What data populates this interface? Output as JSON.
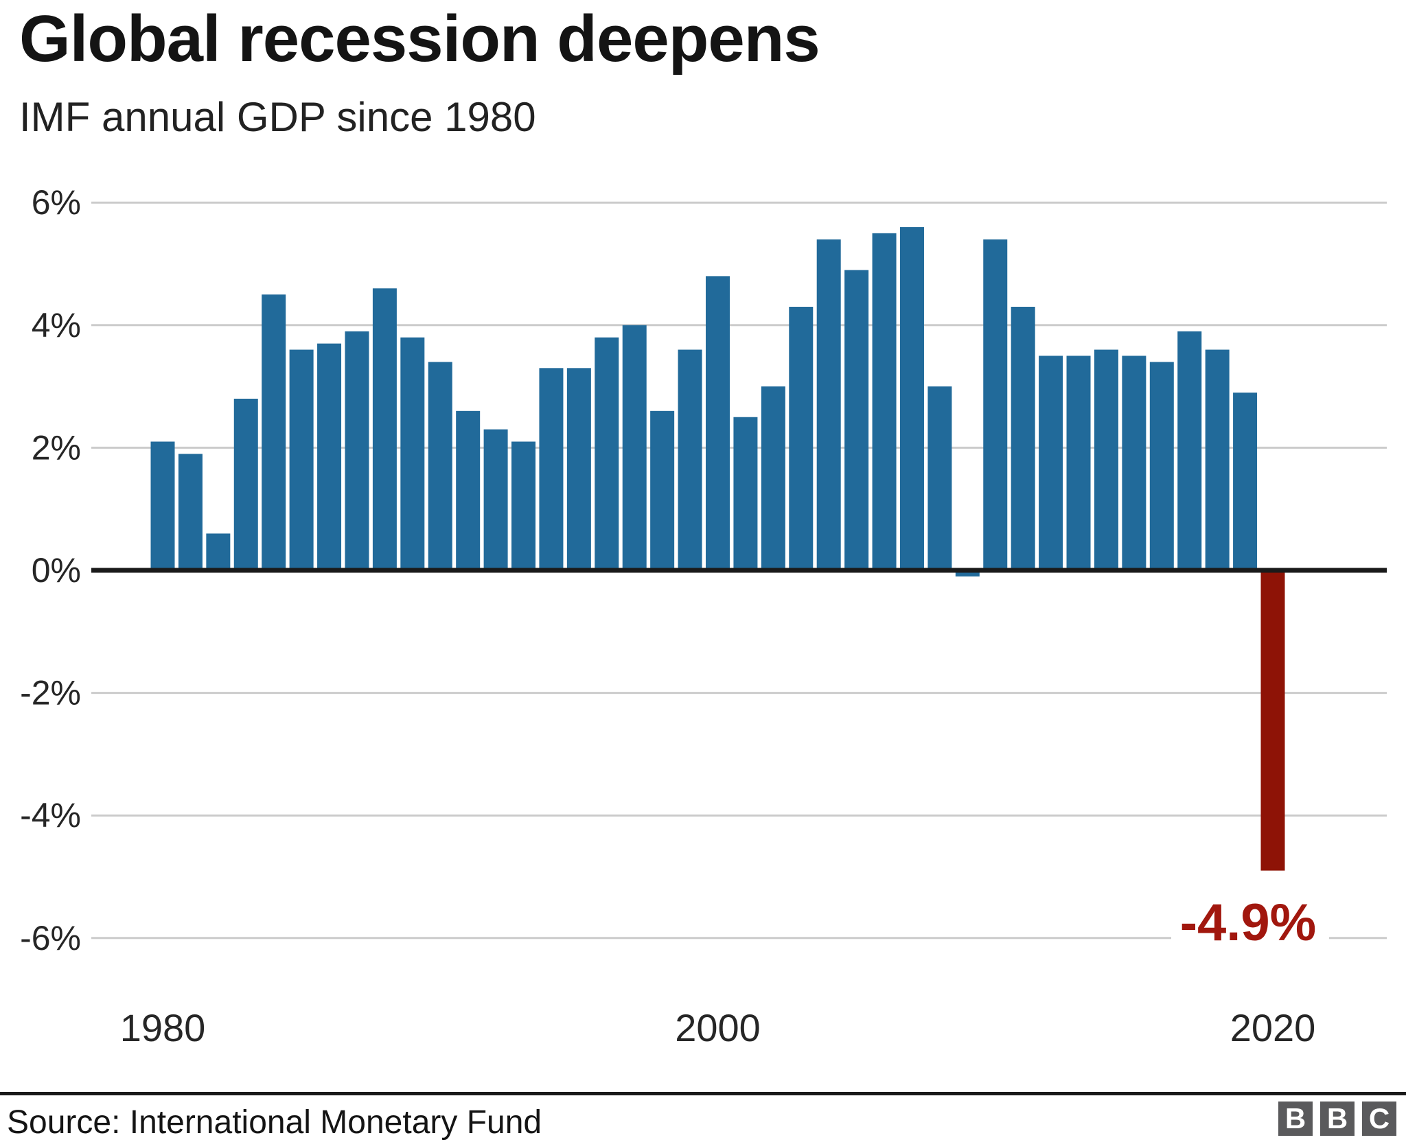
{
  "header": {
    "title": "Global recession deepens",
    "subtitle": "IMF annual GDP since 1980"
  },
  "chart_data": {
    "type": "bar",
    "title": "Global recession deepens",
    "subtitle": "IMF annual GDP since 1980",
    "unit": "%",
    "categories": [
      1980,
      1981,
      1982,
      1983,
      1984,
      1985,
      1986,
      1987,
      1988,
      1989,
      1990,
      1991,
      1992,
      1993,
      1994,
      1995,
      1996,
      1997,
      1998,
      1999,
      2000,
      2001,
      2002,
      2003,
      2004,
      2005,
      2006,
      2007,
      2008,
      2009,
      2010,
      2011,
      2012,
      2013,
      2014,
      2015,
      2016,
      2017,
      2018,
      2019,
      2020
    ],
    "values": [
      2.1,
      1.9,
      0.6,
      2.8,
      4.5,
      3.6,
      3.7,
      3.9,
      4.6,
      3.8,
      3.4,
      2.6,
      2.3,
      2.1,
      3.3,
      3.3,
      3.8,
      4.0,
      2.6,
      3.6,
      4.8,
      2.5,
      3.0,
      4.3,
      5.4,
      4.9,
      5.5,
      5.6,
      3.0,
      -0.1,
      5.4,
      4.3,
      3.5,
      3.5,
      3.6,
      3.5,
      3.4,
      3.9,
      3.6,
      2.9,
      -4.9
    ],
    "ylim": [
      -6,
      6
    ],
    "ytick_values": [
      6,
      4,
      2,
      0,
      -2,
      -4,
      -6
    ],
    "ytick_labels": [
      "6%",
      "4%",
      "2%",
      "0%",
      "-2%",
      "-4%",
      "-6%"
    ],
    "xtick_years": [
      1980,
      2000,
      2020
    ],
    "xtick_labels": [
      "1980",
      "2000",
      "2020"
    ],
    "grid": true,
    "legend": "none",
    "bar_color": "#216a9a",
    "highlight_year": 2020,
    "highlight_color": "#8e1306",
    "gridline_color": "#cccccc",
    "axis_color": "#1a1a1a",
    "tick_text_color": "#262626",
    "annotation": {
      "text": "-4.9%",
      "year": 2020,
      "color": "#a1170e"
    }
  },
  "footer": {
    "source": "Source: International Monetary Fund",
    "logo_letters": [
      "B",
      "B",
      "C"
    ]
  }
}
